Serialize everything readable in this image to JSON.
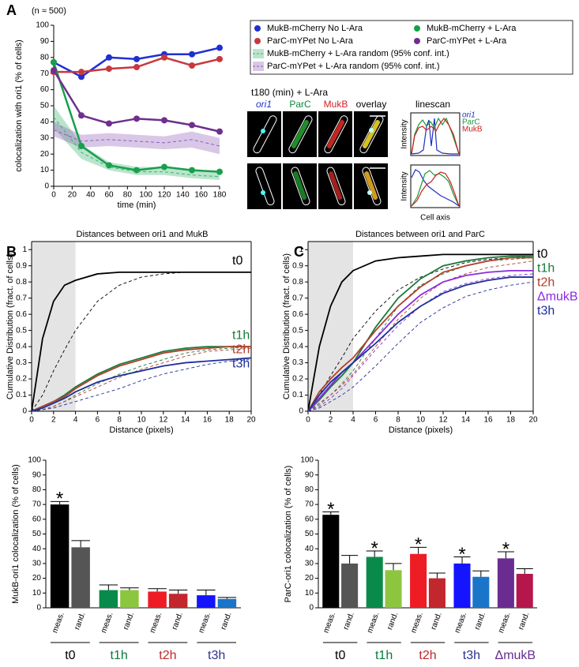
{
  "panels": [
    "A",
    "B",
    "C"
  ],
  "micrograph": {
    "title": "t180 (min) + L-Ara",
    "channels": [
      "ori1",
      "ParC",
      "MukB",
      "overlay"
    ],
    "linescan": "linescan",
    "linescan_legend": [
      "ori1",
      "ParC",
      "MukB"
    ],
    "y_label": "Intensity",
    "x_label": "Cell axis"
  },
  "chart_data": [
    {
      "type": "line",
      "title": "(n ≈ 500)",
      "xlabel": "time (min)",
      "ylabel": "colocalization with ori1 (% of cells)",
      "x": [
        0,
        30,
        60,
        90,
        120,
        150,
        180
      ],
      "xlim": [
        0,
        180
      ],
      "xticks": [
        0,
        20,
        40,
        60,
        80,
        100,
        120,
        140,
        160,
        180
      ],
      "ylim": [
        0,
        100
      ],
      "yticks": [
        0,
        10,
        20,
        30,
        40,
        50,
        60,
        70,
        80,
        90,
        100
      ],
      "legend": "right",
      "series": [
        {
          "name": "MukB-mCherry No L-Ara",
          "color": "#1f2fd0",
          "values": [
            77,
            68,
            80,
            79,
            82,
            82,
            86
          ]
        },
        {
          "name": "ParC-mYPet No L-Ara",
          "color": "#c7383d",
          "values": [
            71,
            71,
            73,
            74,
            80,
            75,
            79
          ]
        },
        {
          "name": "MukB-mCherry + L-Ara",
          "color": "#16a04a",
          "values": [
            77,
            25,
            13,
            10,
            12,
            10,
            9
          ]
        },
        {
          "name": "ParC-mYPet + L-Ara",
          "color": "#6e2f8e",
          "values": [
            72,
            44,
            39,
            42,
            41,
            38,
            34
          ]
        },
        {
          "name": "MukB-mCherry + L-Ara random (95% conf. int.)",
          "color": "#3cb371",
          "dash": true,
          "values": [
            43,
            21,
            12,
            9,
            9,
            7,
            6
          ],
          "lower": [
            36,
            17,
            10,
            7,
            7,
            5,
            4
          ],
          "upper": [
            50,
            26,
            15,
            12,
            12,
            10,
            9
          ]
        },
        {
          "name": "ParC-mYPet + L-Ara random (95% conf. int.)",
          "color": "#8e5fb8",
          "dash": true,
          "values": [
            35,
            28,
            29,
            28,
            27,
            29,
            25
          ],
          "lower": [
            31,
            24,
            25,
            24,
            23,
            24,
            20
          ],
          "upper": [
            40,
            32,
            33,
            32,
            31,
            34,
            30
          ]
        }
      ]
    },
    {
      "type": "line",
      "title": "Distances between ori1 and MukB",
      "xlabel": "Distance (pixels)",
      "ylabel": "Cumulative Distribution (fract. of cells)",
      "x": [
        0,
        1,
        2,
        3,
        4,
        6,
        8,
        10,
        12,
        14,
        16,
        18,
        20
      ],
      "xlim": [
        0,
        20
      ],
      "xticks": [
        0,
        2,
        4,
        6,
        8,
        10,
        12,
        14,
        16,
        18,
        20
      ],
      "ylim": [
        0,
        1.05
      ],
      "yticks": [
        0,
        0.1,
        0.2,
        0.3,
        0.4,
        0.5,
        0.6,
        0.7,
        0.8,
        0.9,
        1
      ],
      "shaded_range": [
        0,
        4
      ],
      "series": [
        {
          "name": "t0",
          "color": "#000000",
          "values": [
            0,
            0.45,
            0.68,
            0.78,
            0.81,
            0.85,
            0.86,
            0.86,
            0.86,
            0.86,
            0.86,
            0.86,
            0.86
          ]
        },
        {
          "color": "#000000",
          "dash": true,
          "values": [
            0,
            0.1,
            0.25,
            0.38,
            0.5,
            0.68,
            0.78,
            0.83,
            0.85,
            0.86,
            0.86,
            0.86,
            0.86
          ]
        },
        {
          "name": "t1h",
          "color": "#1a7a3c",
          "values": [
            0,
            0.03,
            0.06,
            0.1,
            0.15,
            0.23,
            0.29,
            0.33,
            0.37,
            0.39,
            0.4,
            0.4,
            0.4
          ]
        },
        {
          "color": "#1a7a3c",
          "dash": true,
          "values": [
            0,
            0.01,
            0.03,
            0.06,
            0.1,
            0.17,
            0.23,
            0.28,
            0.32,
            0.36,
            0.38,
            0.39,
            0.4
          ]
        },
        {
          "name": "t2h",
          "color": "#b0402a",
          "values": [
            0,
            0.03,
            0.06,
            0.09,
            0.14,
            0.22,
            0.28,
            0.32,
            0.36,
            0.38,
            0.39,
            0.4,
            0.4
          ]
        },
        {
          "color": "#b0402a",
          "dash": true,
          "values": [
            0,
            0.01,
            0.03,
            0.06,
            0.09,
            0.15,
            0.21,
            0.26,
            0.3,
            0.34,
            0.37,
            0.38,
            0.39
          ]
        },
        {
          "name": "t3h",
          "color": "#1f2f9a",
          "values": [
            0,
            0.02,
            0.05,
            0.08,
            0.12,
            0.18,
            0.22,
            0.25,
            0.28,
            0.3,
            0.31,
            0.32,
            0.33
          ]
        },
        {
          "color": "#1f2f9a",
          "dash": true,
          "values": [
            0,
            0.01,
            0.02,
            0.04,
            0.06,
            0.1,
            0.14,
            0.19,
            0.23,
            0.26,
            0.29,
            0.31,
            0.32
          ]
        }
      ]
    },
    {
      "type": "line",
      "title": "Distances between ori1 and ParC",
      "xlabel": "Distance (pixels)",
      "ylabel": "Cumulative Distribution (fract. of cells)",
      "x": [
        0,
        1,
        2,
        3,
        4,
        6,
        8,
        10,
        12,
        14,
        16,
        18,
        20
      ],
      "xlim": [
        0,
        20
      ],
      "xticks": [
        0,
        2,
        4,
        6,
        8,
        10,
        12,
        14,
        16,
        18,
        20
      ],
      "ylim": [
        0,
        1.05
      ],
      "yticks": [
        0,
        0.1,
        0.2,
        0.3,
        0.4,
        0.5,
        0.6,
        0.7,
        0.8,
        0.9,
        1
      ],
      "shaded_range": [
        0,
        4
      ],
      "series": [
        {
          "name": "t0",
          "color": "#000000",
          "values": [
            0,
            0.4,
            0.65,
            0.8,
            0.87,
            0.93,
            0.95,
            0.96,
            0.97,
            0.97,
            0.97,
            0.97,
            0.97
          ]
        },
        {
          "color": "#000000",
          "dash": true,
          "values": [
            0,
            0.1,
            0.22,
            0.33,
            0.45,
            0.62,
            0.75,
            0.83,
            0.88,
            0.92,
            0.94,
            0.95,
            0.96
          ]
        },
        {
          "name": "t1h",
          "color": "#1a7a3c",
          "values": [
            0,
            0.07,
            0.15,
            0.22,
            0.3,
            0.52,
            0.7,
            0.82,
            0.9,
            0.93,
            0.95,
            0.96,
            0.96
          ]
        },
        {
          "color": "#1a7a3c",
          "dash": true,
          "values": [
            0,
            0.05,
            0.1,
            0.17,
            0.25,
            0.45,
            0.65,
            0.78,
            0.85,
            0.9,
            0.93,
            0.94,
            0.95
          ]
        },
        {
          "name": "t2h",
          "color": "#b0402a",
          "values": [
            0,
            0.12,
            0.2,
            0.27,
            0.33,
            0.5,
            0.65,
            0.77,
            0.86,
            0.9,
            0.93,
            0.95,
            0.95
          ]
        },
        {
          "color": "#b0402a",
          "dash": true,
          "values": [
            0,
            0.04,
            0.1,
            0.16,
            0.23,
            0.4,
            0.57,
            0.7,
            0.8,
            0.85,
            0.89,
            0.91,
            0.93
          ]
        },
        {
          "name": "ΔmukB",
          "color": "#8a2be2",
          "values": [
            0,
            0.08,
            0.16,
            0.24,
            0.3,
            0.45,
            0.6,
            0.72,
            0.8,
            0.84,
            0.86,
            0.87,
            0.87
          ]
        },
        {
          "color": "#8a2be2",
          "dash": true,
          "values": [
            0,
            0.03,
            0.08,
            0.14,
            0.22,
            0.38,
            0.53,
            0.65,
            0.74,
            0.79,
            0.82,
            0.84,
            0.85
          ]
        },
        {
          "name": "t3h",
          "color": "#1f2f9a",
          "values": [
            0,
            0.1,
            0.18,
            0.24,
            0.3,
            0.42,
            0.55,
            0.65,
            0.73,
            0.78,
            0.81,
            0.83,
            0.83
          ]
        },
        {
          "color": "#1f2f9a",
          "dash": true,
          "values": [
            0,
            0.02,
            0.06,
            0.1,
            0.15,
            0.28,
            0.42,
            0.55,
            0.64,
            0.71,
            0.75,
            0.78,
            0.8
          ]
        }
      ]
    },
    {
      "type": "bar",
      "ylabel": "MukB-ori1 colocalization (% of cells)",
      "categories": [
        "meas.",
        "rand.",
        "meas.",
        "rand.",
        "meas.",
        "rand.",
        "meas.",
        "rand."
      ],
      "groups": [
        "t0",
        "t1h",
        "t2h",
        "t3h"
      ],
      "group_colors": [
        "#000000",
        "#0a7a3c",
        "#c1272d",
        "#2e3192"
      ],
      "values": [
        70,
        41,
        12,
        12,
        11,
        9.5,
        8.5,
        6
      ],
      "errors": [
        2,
        4.5,
        3.5,
        1.5,
        2,
        2.5,
        3.5,
        1
      ],
      "colors": [
        "#000000",
        "#555555",
        "#0a8a4a",
        "#8cc63f",
        "#ee1c24",
        "#c1272d",
        "#1414ff",
        "#1a75c9"
      ],
      "significance": [
        "*",
        null,
        null,
        null,
        null,
        null,
        null,
        null
      ],
      "ylim": [
        0,
        100
      ],
      "yticks": [
        0,
        10,
        20,
        30,
        40,
        50,
        60,
        70,
        80,
        90,
        100
      ]
    },
    {
      "type": "bar",
      "ylabel": "ParC-ori1 colocalization (% of cells)",
      "categories": [
        "meas.",
        "rand.",
        "meas.",
        "rand.",
        "meas.",
        "rand.",
        "meas.",
        "rand.",
        "meas.",
        "rand."
      ],
      "groups": [
        "t0",
        "t1h",
        "t2h",
        "t3h",
        "ΔmukB"
      ],
      "group_colors": [
        "#000000",
        "#0a7a3c",
        "#c1272d",
        "#2e3192",
        "#662d91"
      ],
      "values": [
        63,
        30,
        34.5,
        25.5,
        36.5,
        20,
        30,
        21,
        33.5,
        23
      ],
      "errors": [
        2,
        5.5,
        4,
        4.5,
        4.5,
        3.5,
        4.5,
        4,
        4.5,
        3.5
      ],
      "colors": [
        "#000000",
        "#555555",
        "#0a8a4a",
        "#8cc63f",
        "#ee1c24",
        "#c1272d",
        "#1414ff",
        "#1a75c9",
        "#6a2c91",
        "#b5174d"
      ],
      "significance": [
        "*",
        null,
        "*",
        null,
        "*",
        null,
        "*",
        null,
        "*",
        null
      ],
      "ylim": [
        0,
        100
      ],
      "yticks": [
        0,
        10,
        20,
        30,
        40,
        50,
        60,
        70,
        80,
        90,
        100
      ]
    }
  ]
}
